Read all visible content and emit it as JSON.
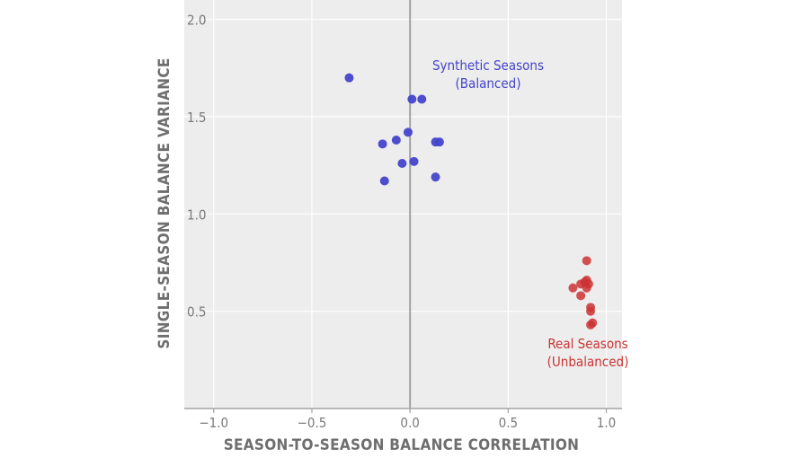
{
  "colors": {
    "panel": "#ededed",
    "grid": "#ffffff",
    "zero_line": "#a3a3a3",
    "synthetic": "#4444cc",
    "real": "#cc3333",
    "axis_text": "#7a7a7a"
  },
  "chart_data": {
    "type": "scatter",
    "title": "",
    "xlabel": "SEASON-TO-SEASON BALANCE CORRELATION",
    "ylabel": "SINGLE-SEASON BALANCE VARIANCE",
    "xlim": [
      -1.15,
      1.08
    ],
    "ylim": [
      0.0,
      2.1
    ],
    "x_ticks": [
      -1.0,
      -0.5,
      0.0,
      0.5,
      1.0
    ],
    "x_tick_labels": [
      "−1.0",
      "−0.5",
      "0.0",
      "0.5",
      "1.0"
    ],
    "y_ticks": [
      0.5,
      1.0,
      1.5,
      2.0
    ],
    "y_tick_labels": [
      "0.5",
      "1.0",
      "1.5",
      "2.0"
    ],
    "grid": true,
    "series": [
      {
        "name": "Synthetic Seasons (Balanced)",
        "color": "#4444cc",
        "points": [
          {
            "x": -0.31,
            "y": 1.7
          },
          {
            "x": 0.01,
            "y": 1.59
          },
          {
            "x": 0.06,
            "y": 1.59
          },
          {
            "x": -0.14,
            "y": 1.36
          },
          {
            "x": -0.07,
            "y": 1.38
          },
          {
            "x": -0.01,
            "y": 1.42
          },
          {
            "x": 0.13,
            "y": 1.37
          },
          {
            "x": 0.15,
            "y": 1.37
          },
          {
            "x": -0.04,
            "y": 1.26
          },
          {
            "x": 0.02,
            "y": 1.27
          },
          {
            "x": -0.13,
            "y": 1.17
          },
          {
            "x": 0.13,
            "y": 1.19
          }
        ]
      },
      {
        "name": "Real Seasons (Unbalanced)",
        "color": "#cc3333",
        "points": [
          {
            "x": 0.9,
            "y": 0.76
          },
          {
            "x": 0.87,
            "y": 0.64
          },
          {
            "x": 0.89,
            "y": 0.65
          },
          {
            "x": 0.9,
            "y": 0.66
          },
          {
            "x": 0.91,
            "y": 0.64
          },
          {
            "x": 0.9,
            "y": 0.62
          },
          {
            "x": 0.83,
            "y": 0.62
          },
          {
            "x": 0.87,
            "y": 0.58
          },
          {
            "x": 0.92,
            "y": 0.52
          },
          {
            "x": 0.92,
            "y": 0.5
          },
          {
            "x": 0.93,
            "y": 0.44
          },
          {
            "x": 0.92,
            "y": 0.43
          }
        ]
      }
    ],
    "annotations": [
      {
        "id": "synthetic",
        "lines": [
          "Synthetic Seasons",
          "(Balanced)"
        ],
        "color": "#4444cc"
      },
      {
        "id": "real",
        "lines": [
          "Real Seasons",
          "(Unbalanced)"
        ],
        "color": "#cc3333"
      }
    ]
  }
}
